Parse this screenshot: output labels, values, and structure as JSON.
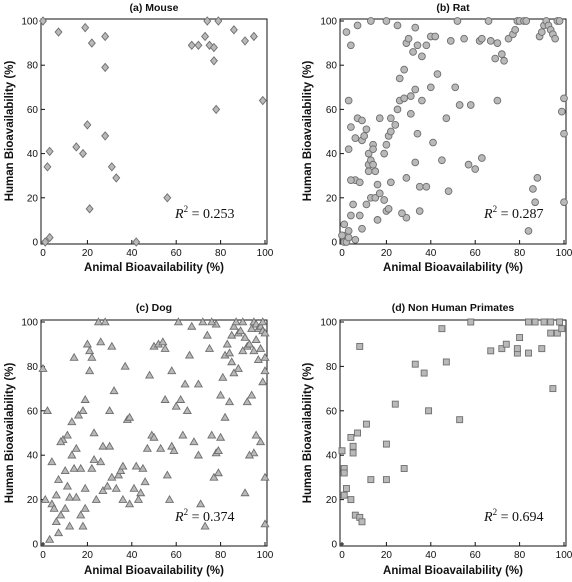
{
  "chart_data": [
    {
      "type": "scatter",
      "title": "(a) Mouse",
      "xlabel": "Animal Bioavailability (%)",
      "ylabel": "Human Bioavailability (%)",
      "xlim": [
        0,
        100
      ],
      "ylim": [
        0,
        100
      ],
      "xticks": [
        0,
        20,
        40,
        60,
        80,
        100
      ],
      "yticks": [
        0,
        20,
        40,
        60,
        80,
        100
      ],
      "marker": "diamond",
      "r2": "0.253",
      "annotation": {
        "prefix": "R",
        "exponent": "2",
        "text": " = 0.253"
      },
      "points": [
        [
          0,
          100
        ],
        [
          2,
          34
        ],
        [
          3,
          41
        ],
        [
          1,
          0
        ],
        [
          3,
          2
        ],
        [
          7,
          95
        ],
        [
          19,
          97
        ],
        [
          22,
          90
        ],
        [
          28,
          93
        ],
        [
          28,
          79
        ],
        [
          20,
          53
        ],
        [
          18,
          40
        ],
        [
          15,
          43
        ],
        [
          21,
          15
        ],
        [
          28,
          48
        ],
        [
          31,
          34
        ],
        [
          33,
          29
        ],
        [
          42,
          0
        ],
        [
          56,
          20
        ],
        [
          67,
          89
        ],
        [
          70,
          89
        ],
        [
          73,
          93
        ],
        [
          74,
          100
        ],
        [
          75,
          89
        ],
        [
          77,
          88
        ],
        [
          79,
          100
        ],
        [
          77,
          82
        ],
        [
          78,
          60
        ],
        [
          86,
          96
        ],
        [
          91,
          91
        ],
        [
          95,
          93
        ],
        [
          99,
          64
        ]
      ]
    },
    {
      "type": "scatter",
      "title": "(b) Rat",
      "xlabel": "Animal Bioavailability (%)",
      "ylabel": "Human Bioavailability (%)",
      "xlim": [
        0,
        100
      ],
      "ylim": [
        0,
        100
      ],
      "xticks": [
        0,
        20,
        40,
        60,
        80,
        100
      ],
      "yticks": [
        0,
        20,
        40,
        60,
        80,
        100
      ],
      "marker": "circle",
      "r2": "0.287",
      "annotation": {
        "prefix": "R",
        "exponent": "2",
        "text": " = 0.287"
      },
      "points": [
        [
          1,
          1
        ],
        [
          2,
          3
        ],
        [
          3,
          5
        ],
        [
          1,
          8
        ],
        [
          4,
          12
        ],
        [
          5,
          17
        ],
        [
          3,
          42
        ],
        [
          4,
          52
        ],
        [
          6,
          47
        ],
        [
          6,
          28
        ],
        [
          8,
          27
        ],
        [
          9,
          46
        ],
        [
          7,
          56
        ],
        [
          9,
          55
        ],
        [
          10,
          48
        ],
        [
          11,
          51
        ],
        [
          12,
          35
        ],
        [
          12,
          32
        ],
        [
          13,
          37
        ],
        [
          14,
          35
        ],
        [
          14,
          44
        ],
        [
          15,
          32
        ],
        [
          13,
          20
        ],
        [
          15,
          20
        ],
        [
          16,
          10
        ],
        [
          17,
          22
        ],
        [
          19,
          19
        ],
        [
          20,
          14
        ],
        [
          21,
          15
        ],
        [
          19,
          40
        ],
        [
          20,
          44
        ],
        [
          21,
          48
        ],
        [
          22,
          50
        ],
        [
          22,
          56
        ],
        [
          24,
          53
        ],
        [
          25,
          60
        ],
        [
          26,
          64
        ],
        [
          26,
          74
        ],
        [
          28,
          78
        ],
        [
          28,
          65
        ],
        [
          29,
          29
        ],
        [
          29,
          11
        ],
        [
          31,
          66
        ],
        [
          33,
          69
        ],
        [
          32,
          86
        ],
        [
          34,
          89
        ],
        [
          34,
          49
        ],
        [
          33,
          36
        ],
        [
          35,
          25
        ],
        [
          35,
          14
        ],
        [
          38,
          25
        ],
        [
          38,
          89
        ],
        [
          40,
          93
        ],
        [
          41,
          45
        ],
        [
          43,
          76
        ],
        [
          45,
          37
        ],
        [
          47,
          56
        ],
        [
          48,
          23
        ],
        [
          51,
          70
        ],
        [
          53,
          62
        ],
        [
          55,
          92
        ],
        [
          57,
          35
        ],
        [
          58,
          62
        ],
        [
          60,
          33
        ],
        [
          62,
          91
        ],
        [
          63,
          92
        ],
        [
          66,
          100
        ],
        [
          67,
          91
        ],
        [
          69,
          83
        ],
        [
          70,
          90
        ],
        [
          70,
          64
        ],
        [
          72,
          85
        ],
        [
          73,
          82
        ],
        [
          75,
          92
        ],
        [
          77,
          94
        ],
        [
          78,
          96
        ],
        [
          79,
          100
        ],
        [
          80,
          100
        ],
        [
          82,
          100
        ],
        [
          83,
          100
        ],
        [
          84,
          5
        ],
        [
          86,
          24
        ],
        [
          87,
          18
        ],
        [
          88,
          29
        ],
        [
          89,
          93
        ],
        [
          90,
          95
        ],
        [
          91,
          98
        ],
        [
          92,
          100
        ],
        [
          93,
          98
        ],
        [
          94,
          96
        ],
        [
          95,
          94
        ],
        [
          96,
          92
        ],
        [
          97,
          100
        ],
        [
          98,
          100
        ],
        [
          99,
          59
        ],
        [
          100,
          49
        ],
        [
          100,
          65
        ],
        [
          100,
          18
        ],
        [
          0,
          3
        ],
        [
          1,
          0
        ],
        [
          2,
          0
        ],
        [
          3,
          2
        ],
        [
          6,
          1
        ],
        [
          9,
          6
        ],
        [
          12,
          40
        ],
        [
          14,
          42
        ],
        [
          17,
          56
        ],
        [
          2,
          95
        ],
        [
          4,
          89
        ],
        [
          7,
          98
        ],
        [
          13,
          100
        ],
        [
          20,
          100
        ],
        [
          25,
          98
        ],
        [
          29,
          90
        ],
        [
          30,
          92
        ],
        [
          33,
          97
        ],
        [
          36,
          84
        ],
        [
          42,
          93
        ],
        [
          49,
          91
        ],
        [
          52,
          100
        ],
        [
          3,
          64
        ],
        [
          4,
          28
        ],
        [
          8,
          12
        ],
        [
          11,
          17
        ],
        [
          16,
          26
        ],
        [
          22,
          27
        ],
        [
          27,
          13
        ],
        [
          31,
          58
        ],
        [
          36,
          64
        ],
        [
          40,
          70
        ],
        [
          63,
          38
        ]
      ]
    },
    {
      "type": "scatter",
      "title": "(c) Dog",
      "xlabel": "Animal Bioavailability (%)",
      "ylabel": "Human Bioavailability (%)",
      "xlim": [
        0,
        100
      ],
      "ylim": [
        0,
        100
      ],
      "xticks": [
        0,
        20,
        40,
        60,
        80,
        100
      ],
      "yticks": [
        0,
        20,
        40,
        60,
        80,
        100
      ],
      "marker": "triangle",
      "r2": "0.374",
      "annotation": {
        "prefix": "R",
        "exponent": "2",
        "text": " = 0.374"
      },
      "points": [
        [
          0,
          79
        ],
        [
          1,
          20
        ],
        [
          3,
          2
        ],
        [
          4,
          18
        ],
        [
          5,
          16
        ],
        [
          6,
          22
        ],
        [
          6,
          10
        ],
        [
          7,
          5
        ],
        [
          7,
          29
        ],
        [
          8,
          13
        ],
        [
          9,
          47
        ],
        [
          10,
          33
        ],
        [
          10,
          16
        ],
        [
          11,
          49
        ],
        [
          12,
          8
        ],
        [
          12,
          21
        ],
        [
          13,
          55
        ],
        [
          14,
          34
        ],
        [
          15,
          21
        ],
        [
          14,
          84
        ],
        [
          16,
          58
        ],
        [
          17,
          34
        ],
        [
          18,
          8
        ],
        [
          18,
          60
        ],
        [
          19,
          16
        ],
        [
          19,
          25
        ],
        [
          20,
          90
        ],
        [
          21,
          87
        ],
        [
          21,
          78
        ],
        [
          22,
          84
        ],
        [
          22,
          34
        ],
        [
          23,
          50
        ],
        [
          24,
          20
        ],
        [
          25,
          100
        ],
        [
          26,
          91
        ],
        [
          26,
          37
        ],
        [
          27,
          24
        ],
        [
          28,
          100
        ],
        [
          29,
          26
        ],
        [
          30,
          60
        ],
        [
          30,
          44
        ],
        [
          31,
          89
        ],
        [
          32,
          69
        ],
        [
          33,
          25
        ],
        [
          34,
          31
        ],
        [
          35,
          33
        ],
        [
          36,
          35
        ],
        [
          37,
          80
        ],
        [
          38,
          56
        ],
        [
          39,
          18
        ],
        [
          41,
          25
        ],
        [
          42,
          35
        ],
        [
          44,
          23
        ],
        [
          45,
          34
        ],
        [
          46,
          28
        ],
        [
          47,
          43
        ],
        [
          48,
          76
        ],
        [
          49,
          49
        ],
        [
          50,
          89
        ],
        [
          52,
          90
        ],
        [
          53,
          43
        ],
        [
          54,
          91
        ],
        [
          55,
          88
        ],
        [
          56,
          31
        ],
        [
          57,
          20
        ],
        [
          58,
          44
        ],
        [
          59,
          42
        ],
        [
          60,
          62
        ],
        [
          62,
          65
        ],
        [
          63,
          49
        ],
        [
          64,
          72
        ],
        [
          66,
          85
        ],
        [
          67,
          98
        ],
        [
          68,
          46
        ],
        [
          70,
          40
        ],
        [
          71,
          18
        ],
        [
          72,
          100
        ],
        [
          73,
          8
        ],
        [
          74,
          94
        ],
        [
          75,
          88
        ],
        [
          76,
          49
        ],
        [
          77,
          30
        ],
        [
          78,
          41
        ],
        [
          79,
          42
        ],
        [
          80,
          67
        ],
        [
          81,
          75
        ],
        [
          82,
          85
        ],
        [
          83,
          90
        ],
        [
          84,
          86
        ],
        [
          85,
          94
        ],
        [
          86,
          98
        ],
        [
          87,
          100
        ],
        [
          88,
          95
        ],
        [
          89,
          96
        ],
        [
          90,
          100
        ],
        [
          91,
          93
        ],
        [
          92,
          89
        ],
        [
          93,
          90
        ],
        [
          94,
          97
        ],
        [
          95,
          100
        ],
        [
          96,
          99
        ],
        [
          97,
          97
        ],
        [
          98,
          98
        ],
        [
          99,
          96
        ],
        [
          100,
          95
        ],
        [
          100,
          30
        ],
        [
          100,
          9
        ],
        [
          98,
          46
        ],
        [
          96,
          49
        ],
        [
          95,
          41
        ],
        [
          93,
          40
        ],
        [
          92,
          64
        ],
        [
          90,
          87
        ],
        [
          88,
          79
        ],
        [
          86,
          77
        ],
        [
          85,
          82
        ],
        [
          84,
          64
        ],
        [
          82,
          57
        ],
        [
          80,
          48
        ],
        [
          79,
          32
        ],
        [
          78,
          99
        ],
        [
          76,
          100
        ],
        [
          99,
          100
        ],
        [
          98,
          88
        ],
        [
          97,
          83
        ],
        [
          96,
          92
        ],
        [
          95,
          87
        ],
        [
          100,
          84
        ],
        [
          100,
          78
        ],
        [
          99,
          73
        ],
        [
          94,
          67
        ],
        [
          91,
          23
        ],
        [
          2,
          60
        ],
        [
          4,
          37
        ],
        [
          8,
          46
        ],
        [
          11,
          26
        ],
        [
          13,
          40
        ],
        [
          15,
          43
        ],
        [
          17,
          13
        ],
        [
          19,
          65
        ],
        [
          23,
          38
        ],
        [
          27,
          44
        ],
        [
          31,
          30
        ],
        [
          36,
          20
        ],
        [
          39,
          57
        ],
        [
          43,
          20
        ],
        [
          50,
          48
        ],
        [
          55,
          65
        ],
        [
          58,
          78
        ],
        [
          61,
          100
        ],
        [
          65,
          60
        ],
        [
          70,
          72
        ]
      ]
    },
    {
      "type": "scatter",
      "title": "(d) Non Human Primates",
      "xlabel": "Animal Bioavailability (%)",
      "ylabel": "Human Bioavailability (%)",
      "xlim": [
        0,
        100
      ],
      "ylim": [
        0,
        100
      ],
      "xticks": [
        0,
        20,
        40,
        60,
        80,
        100
      ],
      "yticks": [
        0,
        20,
        40,
        60,
        80,
        100
      ],
      "marker": "square",
      "r2": "0.694",
      "annotation": {
        "prefix": "R",
        "exponent": "2",
        "text": " = 0.694"
      },
      "points": [
        [
          0,
          42
        ],
        [
          1,
          34
        ],
        [
          1,
          32
        ],
        [
          1,
          22
        ],
        [
          2,
          25
        ],
        [
          4,
          48
        ],
        [
          4,
          20
        ],
        [
          5,
          44
        ],
        [
          5,
          41
        ],
        [
          6,
          13
        ],
        [
          7,
          50
        ],
        [
          8,
          89
        ],
        [
          8,
          12
        ],
        [
          9,
          10
        ],
        [
          11,
          54
        ],
        [
          13,
          29
        ],
        [
          20,
          45
        ],
        [
          20,
          29
        ],
        [
          24,
          63
        ],
        [
          28,
          34
        ],
        [
          33,
          81
        ],
        [
          37,
          77
        ],
        [
          39,
          60
        ],
        [
          45,
          97
        ],
        [
          47,
          82
        ],
        [
          53,
          56
        ],
        [
          58,
          100
        ],
        [
          67,
          87
        ],
        [
          72,
          88
        ],
        [
          74,
          90
        ],
        [
          79,
          86
        ],
        [
          79,
          88
        ],
        [
          80,
          93
        ],
        [
          84,
          86
        ],
        [
          84,
          100
        ],
        [
          87,
          100
        ],
        [
          90,
          88
        ],
        [
          91,
          100
        ],
        [
          94,
          100
        ],
        [
          94,
          95
        ],
        [
          95,
          70
        ],
        [
          97,
          95
        ],
        [
          98,
          100
        ],
        [
          99,
          97
        ]
      ]
    }
  ]
}
